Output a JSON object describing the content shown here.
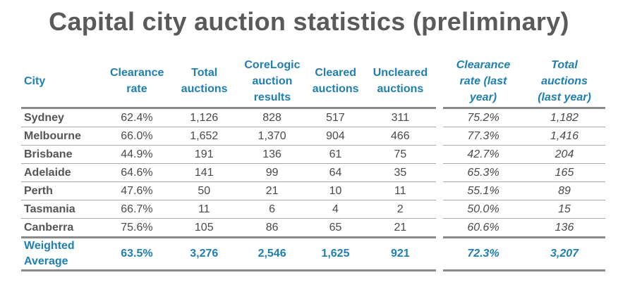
{
  "title": "Capital city auction statistics (preliminary)",
  "headers": {
    "city": "City",
    "clearance_rate": "Clearance rate",
    "total_auctions": "Total auctions",
    "corelogic_results": "CoreLogic auction results",
    "cleared": "Cleared auctions",
    "uncleared": "Uncleared auctions",
    "clearance_rate_ly": "Clearance rate (last year)",
    "total_auctions_ly": "Total auctions (last year)"
  },
  "rows": [
    {
      "city": "Sydney",
      "clearance_rate": "62.4%",
      "total_auctions": "1,126",
      "corelogic_results": "828",
      "cleared": "517",
      "uncleared": "311",
      "clearance_rate_ly": "75.2%",
      "total_auctions_ly": "1,182"
    },
    {
      "city": "Melbourne",
      "clearance_rate": "66.0%",
      "total_auctions": "1,652",
      "corelogic_results": "1,370",
      "cleared": "904",
      "uncleared": "466",
      "clearance_rate_ly": "77.3%",
      "total_auctions_ly": "1,416"
    },
    {
      "city": "Brisbane",
      "clearance_rate": "44.9%",
      "total_auctions": "191",
      "corelogic_results": "136",
      "cleared": "61",
      "uncleared": "75",
      "clearance_rate_ly": "42.7%",
      "total_auctions_ly": "204"
    },
    {
      "city": "Adelaide",
      "clearance_rate": "64.6%",
      "total_auctions": "141",
      "corelogic_results": "99",
      "cleared": "64",
      "uncleared": "35",
      "clearance_rate_ly": "65.3%",
      "total_auctions_ly": "165"
    },
    {
      "city": "Perth",
      "clearance_rate": "47.6%",
      "total_auctions": "50",
      "corelogic_results": "21",
      "cleared": "10",
      "uncleared": "11",
      "clearance_rate_ly": "55.1%",
      "total_auctions_ly": "89"
    },
    {
      "city": "Tasmania",
      "clearance_rate": "66.7%",
      "total_auctions": "11",
      "corelogic_results": "6",
      "cleared": "4",
      "uncleared": "2",
      "clearance_rate_ly": "50.0%",
      "total_auctions_ly": "15"
    },
    {
      "city": "Canberra",
      "clearance_rate": "75.6%",
      "total_auctions": "105",
      "corelogic_results": "86",
      "cleared": "65",
      "uncleared": "21",
      "clearance_rate_ly": "60.6%",
      "total_auctions_ly": "136"
    }
  ],
  "weighted_average": {
    "city_line1": "Weighted",
    "city_line2": "Average",
    "clearance_rate": "63.5%",
    "total_auctions": "3,276",
    "corelogic_results": "2,546",
    "cleared": "1,625",
    "uncleared": "921",
    "clearance_rate_ly": "72.3%",
    "total_auctions_ly": "3,207"
  },
  "colors": {
    "header": "#1f7fb0",
    "title": "#5a5a5a",
    "rule": "#8a8a8a"
  }
}
